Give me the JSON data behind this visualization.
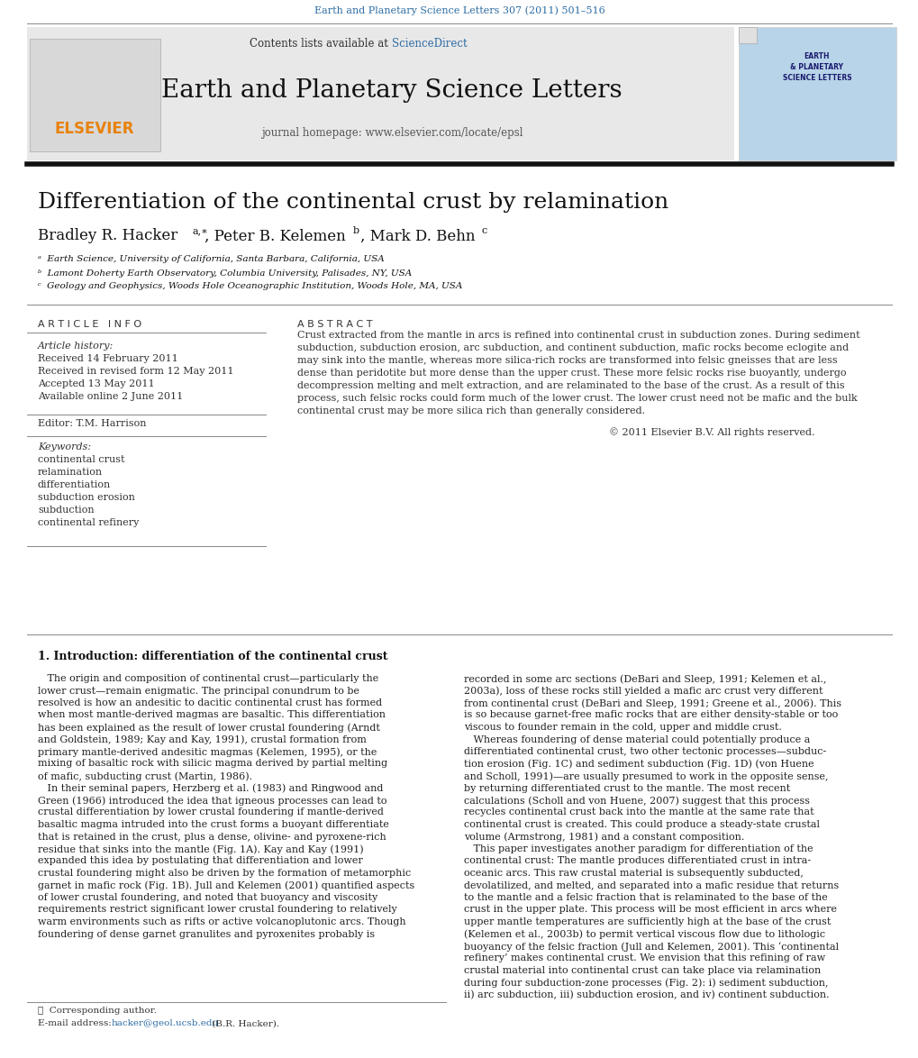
{
  "page_title": "Earth and Planetary Science Letters 307 (2011) 501–516",
  "header_bg": "#e8e8e8",
  "contents_text": "Contents lists available at ",
  "sciencedirect_text": "ScienceDirect",
  "sciencedirect_color": "#2e6da4",
  "journal_name": "Earth and Planetary Science Letters",
  "homepage_text": "journal homepage: www.elsevier.com/locate/epsl",
  "elsevier_color": "#e8820a",
  "paper_title": "Differentiation of the continental crust by relamination",
  "article_info_label": "A R T I C L E   I N F O",
  "abstract_label": "A B S T R A C T",
  "article_history_label": "Article history:",
  "received": "Received 14 February 2011",
  "revised": "Received in revised form 12 May 2011",
  "accepted": "Accepted 13 May 2011",
  "available": "Available online 2 June 2011",
  "editor_label": "Editor: T.M. Harrison",
  "keywords_label": "Keywords:",
  "keywords": [
    "continental crust",
    "relamination",
    "differentiation",
    "subduction erosion",
    "subduction",
    "continental refinery"
  ],
  "section1_title": "1. Introduction: differentiation of the continental crust",
  "corresponding_author_note": "★  Corresponding author.",
  "link_color": "#2e6da4",
  "text_color": "#000000",
  "separator_color": "#888888",
  "thick_separator_color": "#111111",
  "abstract_lines": [
    "Crust extracted from the mantle in arcs is refined into continental crust in subduction zones. During sediment",
    "subduction, subduction erosion, arc subduction, and continent subduction, mafic rocks become eclogite and",
    "may sink into the mantle, whereas more silica-rich rocks are transformed into felsic gneisses that are less",
    "dense than peridotite but more dense than the upper crust. These more felsic rocks rise buoyantly, undergo",
    "decompression melting and melt extraction, and are relaminated to the base of the crust. As a result of this",
    "process, such felsic rocks could form much of the lower crust. The lower crust need not be mafic and the bulk",
    "continental crust may be more silica rich than generally considered.",
    "© 2011 Elsevier B.V. All rights reserved."
  ],
  "col1_lines": [
    "   The origin and composition of continental crust—particularly the",
    "lower crust—remain enigmatic. The principal conundrum to be",
    "resolved is how an andesitic to dacitic continental crust has formed",
    "when most mantle-derived magmas are basaltic. This differentiation",
    "has been explained as the result of lower crustal foundering (Arndt",
    "and Goldstein, 1989; Kay and Kay, 1991), crustal formation from",
    "primary mantle-derived andesitic magmas (Kelemen, 1995), or the",
    "mixing of basaltic rock with silicic magma derived by partial melting",
    "of mafic, subducting crust (Martin, 1986).",
    "   In their seminal papers, Herzberg et al. (1983) and Ringwood and",
    "Green (1966) introduced the idea that igneous processes can lead to",
    "crustal differentiation by lower crustal foundering if mantle-derived",
    "basaltic magma intruded into the crust forms a buoyant differentiate",
    "that is retained in the crust, plus a dense, olivine- and pyroxene-rich",
    "residue that sinks into the mantle (Fig. 1A). Kay and Kay (1991)",
    "expanded this idea by postulating that differentiation and lower",
    "crustal foundering might also be driven by the formation of metamorphic",
    "garnet in mafic rock (Fig. 1B). Jull and Kelemen (2001) quantified aspects",
    "of lower crustal foundering, and noted that buoyancy and viscosity",
    "requirements restrict significant lower crustal foundering to relatively",
    "warm environments such as rifts or active volcanoplutonic arcs. Though",
    "foundering of dense garnet granulites and pyroxenites probably is"
  ],
  "col2_lines": [
    "recorded in some arc sections (DeBari and Sleep, 1991; Kelemen et al.,",
    "2003a), loss of these rocks still yielded a mafic arc crust very different",
    "from continental crust (DeBari and Sleep, 1991; Greene et al., 2006). This",
    "is so because garnet-free mafic rocks that are either density-stable or too",
    "viscous to founder remain in the cold, upper and middle crust.",
    "   Whereas foundering of dense material could potentially produce a",
    "differentiated continental crust, two other tectonic processes—subduc-",
    "tion erosion (Fig. 1C) and sediment subduction (Fig. 1D) (von Huene",
    "and Scholl, 1991)—are usually presumed to work in the opposite sense,",
    "by returning differentiated crust to the mantle. The most recent",
    "calculations (Scholl and von Huene, 2007) suggest that this process",
    "recycles continental crust back into the mantle at the same rate that",
    "continental crust is created. This could produce a steady-state crustal",
    "volume (Armstrong, 1981) and a constant composition.",
    "   This paper investigates another paradigm for differentiation of the",
    "continental crust: The mantle produces differentiated crust in intra-",
    "oceanic arcs. This raw crustal material is subsequently subducted,",
    "devolatilized, and melted, and separated into a mafic residue that returns",
    "to the mantle and a felsic fraction that is relaminated to the base of the",
    "crust in the upper plate. This process will be most efficient in arcs where",
    "upper mantle temperatures are sufficiently high at the base of the crust",
    "(Kelemen et al., 2003b) to permit vertical viscous flow due to lithologic",
    "buoyancy of the felsic fraction (Jull and Kelemen, 2001). This ‘continental",
    "refinery’ makes continental crust. We envision that this refining of raw",
    "crustal material into continental crust can take place via relamination",
    "during four subduction-zone processes (Fig. 2): i) sediment subduction,",
    "ii) arc subduction, iii) subduction erosion, and iv) continent subduction."
  ]
}
